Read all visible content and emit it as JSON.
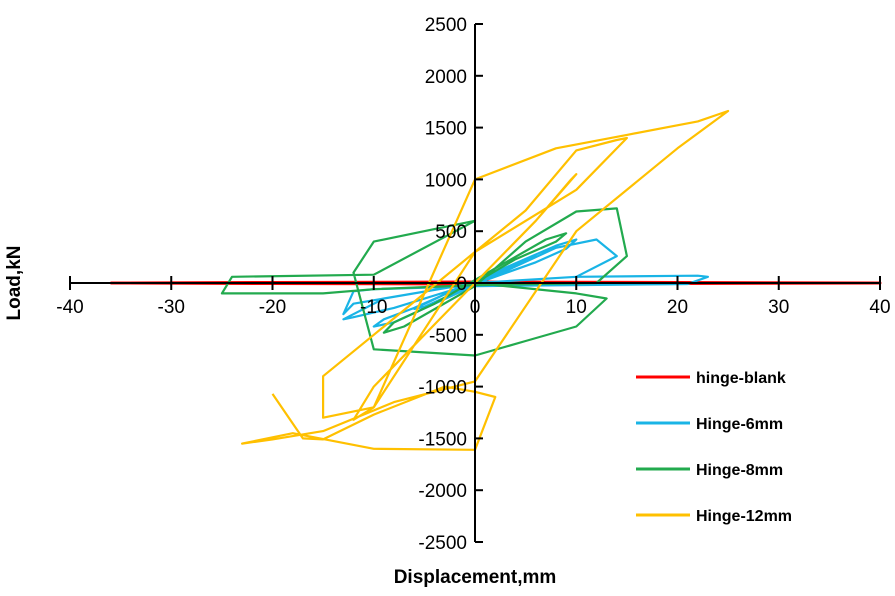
{
  "chart_data": {
    "type": "line",
    "title": "",
    "xlabel": "Displacement,mm",
    "ylabel": "Load,kN",
    "xlim": [
      -40,
      40
    ],
    "ylim": [
      -2500,
      2500
    ],
    "x_ticks": [
      -40,
      -30,
      -20,
      -10,
      0,
      10,
      20,
      30,
      40
    ],
    "x_tick_labels": [
      "-40",
      "-30",
      "-20",
      "-10",
      "0",
      "10",
      "20",
      "30",
      "40"
    ],
    "y_ticks": [
      2500,
      2000,
      1500,
      1000,
      500,
      0,
      -500,
      -1000,
      -1500,
      -2000,
      -2500
    ],
    "y_tick_labels": [
      "2500",
      "2000",
      "1500",
      "1000",
      "500",
      "0",
      "-500",
      "-1000",
      "-1500",
      "-2000",
      "-2500"
    ],
    "grid": false,
    "legend_position": "bottom-right",
    "series": [
      {
        "name": "hinge-blank",
        "color": "#FF0000",
        "x": [
          -36,
          -20,
          0,
          20,
          40,
          20,
          0,
          -20,
          -36
        ],
        "y": [
          0,
          5,
          10,
          5,
          0,
          -5,
          -10,
          -5,
          0
        ]
      },
      {
        "name": "Hinge-6mm",
        "color": "#19B4E6",
        "x": [
          0,
          3,
          6,
          5,
          0,
          -3,
          -6,
          -5,
          0,
          6,
          9,
          10,
          8,
          0,
          -6,
          -9,
          -10,
          -8,
          0,
          8,
          12,
          14,
          10,
          0,
          -8,
          -12,
          -13,
          -9,
          0,
          10,
          22,
          23,
          21,
          0,
          -10,
          -12,
          -13,
          -12,
          0
        ],
        "y": [
          0,
          120,
          260,
          230,
          10,
          -110,
          -250,
          -230,
          -10,
          200,
          330,
          420,
          360,
          20,
          -240,
          -350,
          -420,
          -380,
          -20,
          340,
          420,
          260,
          60,
          0,
          -240,
          -330,
          -350,
          -150,
          0,
          60,
          70,
          60,
          -10,
          -30,
          -60,
          -80,
          -300,
          -200,
          0
        ]
      },
      {
        "name": "Hinge-8mm",
        "color": "#22AA4E",
        "x": [
          0,
          4,
          8,
          9,
          7,
          0,
          -4,
          -8,
          -9,
          -7,
          0,
          5,
          10,
          14,
          15,
          12,
          0,
          -10,
          -15,
          -25,
          -24,
          -10,
          0,
          -4,
          -10,
          -12,
          -10,
          0,
          5,
          10,
          13,
          10,
          0
        ],
        "y": [
          0,
          230,
          400,
          480,
          420,
          30,
          -200,
          -380,
          -480,
          -420,
          -30,
          400,
          690,
          720,
          260,
          0,
          -20,
          -60,
          -100,
          -100,
          60,
          80,
          600,
          520,
          400,
          100,
          -640,
          -700,
          -560,
          -420,
          -150,
          -100,
          0
        ]
      },
      {
        "name": "Hinge-12mm",
        "color": "#FFC000",
        "x": [
          0,
          3,
          6,
          9.5,
          10,
          6,
          0,
          -3,
          -6,
          -10,
          -12,
          -10,
          0,
          5,
          10,
          14,
          15,
          10,
          0,
          -5,
          -10,
          -15,
          -15,
          -10,
          0,
          8,
          15,
          22,
          25,
          20,
          10,
          0,
          -8,
          -15,
          -20,
          -23,
          -18,
          -10,
          0,
          2,
          0,
          -3,
          -10,
          -15,
          -17,
          -20
        ],
        "y": [
          0,
          300,
          600,
          1000,
          1050,
          600,
          0,
          -300,
          -600,
          -1000,
          -1320,
          -1200,
          300,
          700,
          1280,
          1380,
          1400,
          900,
          300,
          -100,
          -500,
          -900,
          -1300,
          -1200,
          1000,
          1300,
          1430,
          1560,
          1660,
          1300,
          500,
          -950,
          -1150,
          -1430,
          -1510,
          -1550,
          -1450,
          -1600,
          -1610,
          -1100,
          -1050,
          -1000,
          -1270,
          -1510,
          -1500,
          -1070
        ]
      }
    ]
  }
}
